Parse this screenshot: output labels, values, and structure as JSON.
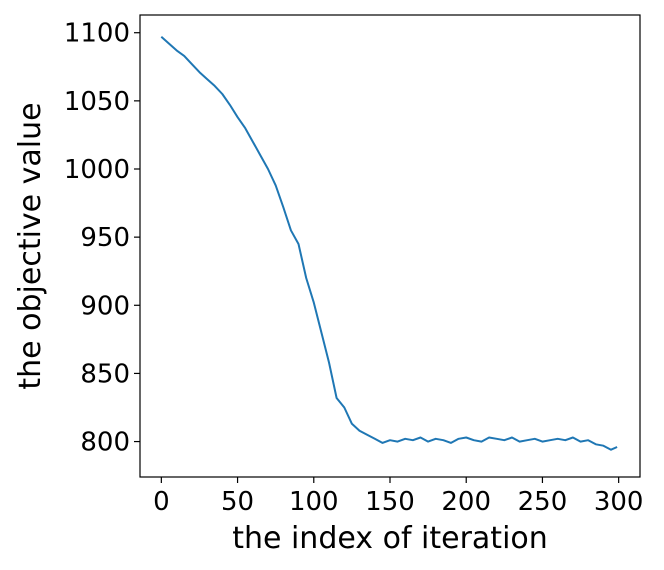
{
  "chart_data": {
    "type": "line",
    "xlabel": "the index of iteration",
    "ylabel": "the objective value",
    "xlim": [
      -14,
      314
    ],
    "ylim": [
      774,
      1113
    ],
    "xticks": [
      0,
      50,
      100,
      150,
      200,
      250,
      300
    ],
    "yticks": [
      800,
      850,
      900,
      950,
      1000,
      1050,
      1100
    ],
    "grid": false,
    "series": [
      {
        "color": "#1f77b4",
        "x": [
          0,
          5,
          10,
          15,
          20,
          25,
          30,
          35,
          40,
          45,
          50,
          55,
          60,
          65,
          70,
          75,
          80,
          85,
          90,
          95,
          100,
          105,
          110,
          115,
          120,
          125,
          130,
          135,
          140,
          145,
          150,
          155,
          160,
          165,
          170,
          175,
          180,
          185,
          190,
          195,
          200,
          205,
          210,
          215,
          220,
          225,
          230,
          235,
          240,
          245,
          250,
          255,
          260,
          265,
          270,
          275,
          280,
          285,
          290,
          295,
          299
        ],
        "y": [
          1097,
          1092,
          1087,
          1083,
          1077,
          1071,
          1066,
          1061,
          1055,
          1047,
          1038,
          1030,
          1020,
          1010,
          1000,
          988,
          972,
          955,
          945,
          920,
          902,
          880,
          858,
          832,
          825,
          813,
          808,
          805,
          802,
          799,
          801,
          800,
          802,
          801,
          803,
          800,
          802,
          801,
          799,
          802,
          803,
          801,
          800,
          803,
          802,
          801,
          803,
          800,
          801,
          802,
          800,
          801,
          802,
          801,
          803,
          800,
          801,
          798,
          797,
          794,
          796
        ]
      }
    ]
  }
}
